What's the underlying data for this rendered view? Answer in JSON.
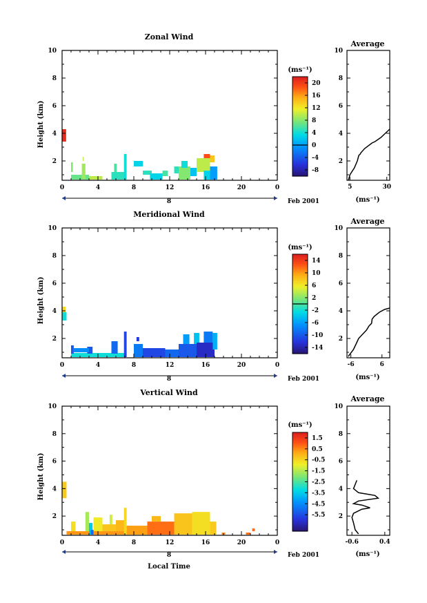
{
  "chart_data": [
    {
      "type": "heatmap",
      "title": "Zonal Wind",
      "ylabel": "Height (km)",
      "units_label": "(ms⁻¹)",
      "date_label": "Feb 2001",
      "day_label": "8",
      "xlim": [
        0,
        24
      ],
      "ylim": [
        0.6,
        10
      ],
      "x_ticks": [
        "0",
        "4",
        "8",
        "12",
        "16",
        "20",
        "0"
      ],
      "y_ticks": [
        "2",
        "4",
        "6",
        "8",
        "10"
      ],
      "colorbar": {
        "min": -10,
        "max": 22,
        "ticks": [
          20,
          16,
          12,
          8,
          4,
          0,
          -4,
          -8
        ],
        "tick_labels": [
          "20",
          "16",
          "12",
          "8",
          "4",
          "0",
          "-4",
          "-8"
        ],
        "zero_line": 0
      },
      "blocks": [
        {
          "t0": 0.0,
          "t1": 0.45,
          "h0": 3.4,
          "h1": 4.3,
          "v": 21
        },
        {
          "t0": 1.0,
          "t1": 1.2,
          "h0": 1.2,
          "h1": 1.9,
          "v": 8
        },
        {
          "t0": 1.0,
          "t1": 3.0,
          "h0": 0.65,
          "h1": 1.0,
          "v": 7
        },
        {
          "t0": 2.2,
          "t1": 2.6,
          "h0": 0.7,
          "h1": 1.8,
          "v": 9
        },
        {
          "t0": 2.3,
          "t1": 2.4,
          "h0": 2.0,
          "h1": 2.3,
          "v": 10
        },
        {
          "t0": 3.0,
          "t1": 4.5,
          "h0": 0.65,
          "h1": 0.9,
          "v": 10
        },
        {
          "t0": 5.5,
          "t1": 7.0,
          "h0": 0.65,
          "h1": 1.2,
          "v": 5
        },
        {
          "t0": 5.8,
          "t1": 6.1,
          "h0": 1.2,
          "h1": 1.8,
          "v": 6
        },
        {
          "t0": 6.9,
          "t1": 7.2,
          "h0": 0.65,
          "h1": 2.5,
          "v": 4
        },
        {
          "t0": 8.0,
          "t1": 9.0,
          "h0": 1.6,
          "h1": 2.0,
          "v": 3
        },
        {
          "t0": 9.0,
          "t1": 10.0,
          "h0": 1.0,
          "h1": 1.3,
          "v": 5
        },
        {
          "t0": 9.8,
          "t1": 11.2,
          "h0": 0.65,
          "h1": 1.1,
          "v": 3
        },
        {
          "t0": 11.2,
          "t1": 11.8,
          "h0": 0.9,
          "h1": 1.3,
          "v": 6
        },
        {
          "t0": 12.5,
          "t1": 13.0,
          "h0": 1.1,
          "h1": 1.6,
          "v": 5
        },
        {
          "t0": 13.0,
          "t1": 14.3,
          "h0": 0.65,
          "h1": 1.6,
          "v": 8
        },
        {
          "t0": 13.3,
          "t1": 14.0,
          "h0": 1.5,
          "h1": 2.0,
          "v": 4
        },
        {
          "t0": 14.3,
          "t1": 15.0,
          "h0": 0.9,
          "h1": 1.5,
          "v": 2
        },
        {
          "t0": 15.0,
          "t1": 16.5,
          "h0": 1.2,
          "h1": 2.2,
          "v": 10
        },
        {
          "t0": 15.8,
          "t1": 16.8,
          "h0": 0.65,
          "h1": 1.3,
          "v": 3
        },
        {
          "t0": 16.5,
          "t1": 17.3,
          "h0": 0.65,
          "h1": 1.6,
          "v": 0
        },
        {
          "t0": 15.8,
          "t1": 16.5,
          "h0": 2.2,
          "h1": 2.5,
          "v": 19
        },
        {
          "t0": 16.5,
          "t1": 17.0,
          "h0": 1.9,
          "h1": 2.4,
          "v": 14
        }
      ],
      "average": {
        "xlim": [
          3,
          32
        ],
        "x_ticks": [
          "5",
          "30"
        ],
        "x_tick_values": [
          5,
          30
        ],
        "xlabel": "(ms⁻¹)",
        "profile": [
          [
            4,
            0.6
          ],
          [
            5,
            1.0
          ],
          [
            8,
            1.5
          ],
          [
            10,
            2.0
          ],
          [
            11,
            2.4
          ],
          [
            12,
            2.5
          ],
          [
            12.5,
            2.6
          ],
          [
            15,
            2.9
          ],
          [
            20,
            3.3
          ],
          [
            22,
            3.4
          ],
          [
            26,
            3.7
          ],
          [
            30,
            4.1
          ],
          [
            32,
            4.3
          ]
        ]
      }
    },
    {
      "type": "heatmap",
      "title": "Meridional Wind",
      "ylabel": "Height (km)",
      "units_label": "(ms⁻¹)",
      "date_label": "Feb 2001",
      "day_label": "8",
      "xlim": [
        0,
        24
      ],
      "ylim": [
        0.6,
        10
      ],
      "x_ticks": [
        "0",
        "4",
        "8",
        "12",
        "16",
        "20",
        "0"
      ],
      "y_ticks": [
        "2",
        "4",
        "6",
        "8",
        "10"
      ],
      "colorbar": {
        "min": -16,
        "max": 16,
        "ticks": [
          14,
          10,
          6,
          2,
          -2,
          -6,
          -10,
          -14
        ],
        "tick_labels": [
          "14",
          "10",
          "6",
          "2",
          "-2",
          "-6",
          "-10",
          "-14"
        ],
        "zero_line": 0
      },
      "blocks": [
        {
          "t0": 0.0,
          "t1": 0.4,
          "h0": 3.9,
          "h1": 4.3,
          "v": 7
        },
        {
          "t0": 0.0,
          "t1": 0.5,
          "h0": 3.3,
          "h1": 3.9,
          "v": -2
        },
        {
          "t0": 1.0,
          "t1": 7.0,
          "h0": 0.65,
          "h1": 0.95,
          "v": -2
        },
        {
          "t0": 1.0,
          "t1": 1.3,
          "h0": 0.9,
          "h1": 1.5,
          "v": -10
        },
        {
          "t0": 2.8,
          "t1": 3.4,
          "h0": 0.9,
          "h1": 1.4,
          "v": -10
        },
        {
          "t0": 1.3,
          "t1": 3.0,
          "h0": 1.0,
          "h1": 1.3,
          "v": -7
        },
        {
          "t0": 5.5,
          "t1": 6.2,
          "h0": 0.9,
          "h1": 1.8,
          "v": -9
        },
        {
          "t0": 6.9,
          "t1": 7.2,
          "h0": 0.65,
          "h1": 2.5,
          "v": -11
        },
        {
          "t0": 8.0,
          "t1": 9.0,
          "h0": 0.65,
          "h1": 1.6,
          "v": -8
        },
        {
          "t0": 8.3,
          "t1": 8.6,
          "h0": 1.8,
          "h1": 2.1,
          "v": -12
        },
        {
          "t0": 9.0,
          "t1": 11.5,
          "h0": 0.65,
          "h1": 1.3,
          "v": -11
        },
        {
          "t0": 11.5,
          "t1": 13.0,
          "h0": 0.65,
          "h1": 1.2,
          "v": -9
        },
        {
          "t0": 13.0,
          "t1": 15.0,
          "h0": 0.65,
          "h1": 1.6,
          "v": -10
        },
        {
          "t0": 13.5,
          "t1": 14.2,
          "h0": 1.6,
          "h1": 2.3,
          "v": -6
        },
        {
          "t0": 14.7,
          "t1": 15.3,
          "h0": 1.6,
          "h1": 2.4,
          "v": -4
        },
        {
          "t0": 15.0,
          "t1": 17.0,
          "h0": 0.65,
          "h1": 1.7,
          "v": -13
        },
        {
          "t0": 15.8,
          "t1": 16.8,
          "h0": 1.7,
          "h1": 2.5,
          "v": -8
        },
        {
          "t0": 16.8,
          "t1": 17.3,
          "h0": 1.2,
          "h1": 2.4,
          "v": -5
        }
      ],
      "average": {
        "xlim": [
          -7.5,
          9
        ],
        "x_ticks": [
          "-6",
          "6"
        ],
        "x_tick_values": [
          -6,
          6
        ],
        "xlabel": "(ms⁻¹)",
        "profile": [
          [
            -7,
            0.7
          ],
          [
            -5,
            1.2
          ],
          [
            -4,
            1.6
          ],
          [
            -3,
            2.0
          ],
          [
            -1,
            2.4
          ],
          [
            0,
            2.6
          ],
          [
            1,
            2.9
          ],
          [
            2,
            3.1
          ],
          [
            2.2,
            3.4
          ],
          [
            3,
            3.6
          ],
          [
            5,
            3.9
          ],
          [
            7,
            4.1
          ],
          [
            9,
            4.2
          ]
        ]
      }
    },
    {
      "type": "heatmap",
      "title": "Vertical Wind",
      "ylabel": "Height (km)",
      "xlabel": "Local Time",
      "units_label": "(ms⁻¹)",
      "date_label": "Feb 2001",
      "day_label": "8",
      "xlim": [
        0,
        24
      ],
      "ylim": [
        0.6,
        10
      ],
      "x_ticks": [
        "0",
        "4",
        "8",
        "12",
        "16",
        "20",
        "0"
      ],
      "y_ticks": [
        "2",
        "4",
        "6",
        "8",
        "10"
      ],
      "colorbar": {
        "min": -7,
        "max": 2,
        "ticks": [
          1.5,
          0.5,
          -0.5,
          -1.5,
          -2.5,
          -3.5,
          -4.5,
          -5.5
        ],
        "tick_labels": [
          "1.5",
          "0.5",
          "-0.5",
          "-1.5",
          "-2.5",
          "-3.5",
          "-4.5",
          "-5.5"
        ],
        "zero_line": null
      },
      "blocks": [
        {
          "t0": 0.0,
          "t1": 0.5,
          "h0": 3.3,
          "h1": 4.5,
          "v": -0.3
        },
        {
          "t0": 0.5,
          "t1": 8.0,
          "h0": 0.65,
          "h1": 0.9,
          "v": 0.4
        },
        {
          "t0": 1.0,
          "t1": 1.5,
          "h0": 0.9,
          "h1": 1.6,
          "v": -0.6
        },
        {
          "t0": 2.6,
          "t1": 3.0,
          "h0": 0.9,
          "h1": 2.3,
          "v": -1.6
        },
        {
          "t0": 3.0,
          "t1": 3.4,
          "h0": 0.65,
          "h1": 1.5,
          "v": -3.5
        },
        {
          "t0": 3.2,
          "t1": 3.5,
          "h0": 0.65,
          "h1": 1.0,
          "v": -5.0
        },
        {
          "t0": 3.5,
          "t1": 4.5,
          "h0": 0.9,
          "h1": 1.9,
          "v": -0.8
        },
        {
          "t0": 4.5,
          "t1": 6.0,
          "h0": 0.9,
          "h1": 1.4,
          "v": -0.2
        },
        {
          "t0": 5.3,
          "t1": 5.6,
          "h0": 1.4,
          "h1": 2.1,
          "v": -1.2
        },
        {
          "t0": 6.0,
          "t1": 7.0,
          "h0": 0.9,
          "h1": 1.7,
          "v": 0.0
        },
        {
          "t0": 6.9,
          "t1": 7.2,
          "h0": 0.65,
          "h1": 2.6,
          "v": -0.5
        },
        {
          "t0": 7.2,
          "t1": 9.5,
          "h0": 0.65,
          "h1": 1.3,
          "v": 0.3
        },
        {
          "t0": 9.5,
          "t1": 12.5,
          "h0": 0.65,
          "h1": 1.6,
          "v": 0.8
        },
        {
          "t0": 10.0,
          "t1": 11.0,
          "h0": 1.6,
          "h1": 2.0,
          "v": 0.0
        },
        {
          "t0": 12.5,
          "t1": 14.5,
          "h0": 0.65,
          "h1": 2.2,
          "v": -0.2
        },
        {
          "t0": 14.5,
          "t1": 16.5,
          "h0": 0.65,
          "h1": 2.3,
          "v": -0.6
        },
        {
          "t0": 16.5,
          "t1": 17.2,
          "h0": 0.65,
          "h1": 1.6,
          "v": -0.3
        },
        {
          "t0": 17.8,
          "t1": 18.2,
          "h0": 0.65,
          "h1": 0.8,
          "v": 0.5
        },
        {
          "t0": 20.5,
          "t1": 21.0,
          "h0": 0.65,
          "h1": 0.8,
          "v": 0.8
        },
        {
          "t0": 21.2,
          "t1": 21.5,
          "h0": 0.9,
          "h1": 1.1,
          "v": 0.8
        }
      ],
      "average": {
        "xlim": [
          -0.75,
          0.55
        ],
        "x_ticks": [
          "-0.6",
          "0.4"
        ],
        "x_tick_values": [
          -0.6,
          0.4
        ],
        "xlabel": "(ms⁻¹)",
        "profile": [
          [
            -0.4,
            0.7
          ],
          [
            -0.5,
            1.0
          ],
          [
            -0.55,
            1.5
          ],
          [
            -0.6,
            1.9
          ],
          [
            -0.55,
            2.2
          ],
          [
            -0.3,
            2.5
          ],
          [
            -0.05,
            2.6
          ],
          [
            -0.3,
            2.8
          ],
          [
            -0.55,
            2.9
          ],
          [
            -0.4,
            3.1
          ],
          [
            0.2,
            3.3
          ],
          [
            0.1,
            3.5
          ],
          [
            -0.4,
            3.7
          ],
          [
            -0.55,
            4.0
          ],
          [
            -0.5,
            4.3
          ],
          [
            -0.45,
            4.6
          ]
        ]
      }
    }
  ]
}
